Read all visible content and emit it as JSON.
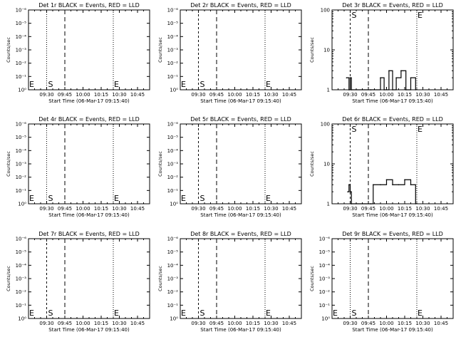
{
  "colors": {
    "events": "#000000",
    "lld": "#ff0000",
    "background": "#ffffff"
  },
  "layout_common": {
    "x_tick_labels": [
      "09:30",
      "09:45",
      "10:00",
      "10:15",
      "10:30",
      "10:45"
    ],
    "xlabel": "Start Time (06-Mar-17 09:15:40)",
    "ylabel": "Counts/sec",
    "marker_s": "S",
    "marker_e": "E"
  },
  "chart_data": [
    {
      "type": "line",
      "scale": "log",
      "title": "Det 1r BLACK = Events, RED = LLD",
      "ytick_labels": [
        "10⁰",
        "10⁻¹",
        "10⁻²",
        "10⁻³",
        "10⁻⁴",
        "10⁻⁵",
        "10⁻⁶"
      ],
      "ylim": [
        1,
        1e-06
      ],
      "xlim": [
        "09:15",
        "10:55"
      ],
      "lines": {
        "dotted": [
          "09:15",
          "09:30",
          "10:25",
          "10:55"
        ],
        "dashed": [
          "09:45"
        ],
        "short_dash": []
      },
      "series": []
    },
    {
      "type": "line",
      "scale": "log",
      "title": "Det 2r BLACK = Events, RED = LLD",
      "ytick_labels": [
        "10⁰",
        "10⁻¹",
        "10⁻²",
        "10⁻³",
        "10⁻⁴",
        "10⁻⁵",
        "10⁻⁶"
      ],
      "ylim": [
        1,
        1e-06
      ],
      "xlim": [
        "09:15",
        "10:55"
      ],
      "lines": {
        "dotted": [
          "09:15",
          "10:25",
          "10:55"
        ],
        "dashed": [
          "09:45"
        ],
        "short_dash": [
          "09:30"
        ]
      },
      "series": []
    },
    {
      "type": "line",
      "scale": "log",
      "title": "Det 3r BLACK = Events, RED = LLD",
      "ytick_labels": [
        "1",
        "10",
        "100"
      ],
      "ylim": [
        1,
        100
      ],
      "xlim": [
        "09:15",
        "10:55"
      ],
      "lines": {
        "dotted": [
          "09:15",
          "10:25",
          "10:55"
        ],
        "dashed": [
          "09:45"
        ],
        "short_dash": [
          "09:30"
        ]
      },
      "series": [
        {
          "type": "step",
          "x": [
            "09:27",
            "09:29",
            "09:30",
            "09:31",
            "09:47",
            "09:55",
            "09:58",
            "10:02",
            "10:05",
            "10:08",
            "10:12",
            "10:16",
            "10:20",
            "10:24"
          ],
          "values": [
            2,
            1,
            2,
            1,
            1,
            2,
            1,
            3,
            1,
            2,
            3,
            1,
            2,
            1
          ]
        }
      ]
    },
    {
      "type": "line",
      "scale": "log",
      "title": "Det 4r BLACK = Events, RED = LLD",
      "ytick_labels": [
        "10⁰",
        "10⁻¹",
        "10⁻²",
        "10⁻³",
        "10⁻⁴",
        "10⁻⁵",
        "10⁻⁶"
      ],
      "ylim": [
        1,
        1e-06
      ],
      "xlim": [
        "09:15",
        "10:55"
      ],
      "lines": {
        "dotted": [
          "09:15",
          "09:30",
          "10:25",
          "10:55"
        ],
        "dashed": [
          "09:45"
        ],
        "short_dash": []
      },
      "series": []
    },
    {
      "type": "line",
      "scale": "log",
      "title": "Det 5r BLACK = Events, RED = LLD",
      "ytick_labels": [
        "10⁰",
        "10⁻¹",
        "10⁻²",
        "10⁻³",
        "10⁻⁴",
        "10⁻⁵",
        "10⁻⁶"
      ],
      "ylim": [
        1,
        1e-06
      ],
      "xlim": [
        "09:15",
        "10:55"
      ],
      "lines": {
        "dotted": [
          "09:15",
          "10:25",
          "10:55"
        ],
        "dashed": [
          "09:45"
        ],
        "short_dash": [
          "09:30"
        ]
      },
      "series": []
    },
    {
      "type": "line",
      "scale": "log",
      "title": "Det 6r BLACK = Events, RED = LLD",
      "ytick_labels": [
        "1",
        "10",
        "100"
      ],
      "ylim": [
        1,
        100
      ],
      "xlim": [
        "09:15",
        "10:55"
      ],
      "lines": {
        "dotted": [
          "09:15",
          "10:25",
          "10:55"
        ],
        "dashed": [
          "09:45"
        ],
        "short_dash": [
          "09:30"
        ]
      },
      "series": [
        {
          "type": "step",
          "x": [
            "09:28",
            "09:29",
            "09:30",
            "09:31",
            "09:47",
            "09:49",
            "09:55",
            "10:00",
            "10:05",
            "10:10",
            "10:15",
            "10:20",
            "10:24"
          ],
          "values": [
            2,
            3,
            2,
            1,
            1,
            3,
            3,
            4,
            3,
            3,
            4,
            3,
            1
          ]
        }
      ]
    },
    {
      "type": "line",
      "scale": "log",
      "title": "Det 7r BLACK = Events, RED = LLD",
      "ytick_labels": [
        "10⁰",
        "10⁻¹",
        "10⁻²",
        "10⁻³",
        "10⁻⁴",
        "10⁻⁵",
        "10⁻⁶"
      ],
      "ylim": [
        1,
        1e-06
      ],
      "xlim": [
        "09:15",
        "10:55"
      ],
      "lines": {
        "dotted": [
          "09:15",
          "10:25",
          "10:55"
        ],
        "dashed": [
          "09:45"
        ],
        "short_dash": [
          "09:30"
        ]
      },
      "series": []
    },
    {
      "type": "line",
      "scale": "log",
      "title": "Det 8r BLACK = Events, RED = LLD",
      "ytick_labels": [
        "10⁰",
        "10⁻¹",
        "10⁻²",
        "10⁻³",
        "10⁻⁴",
        "10⁻⁵",
        "10⁻⁶"
      ],
      "ylim": [
        1,
        1e-06
      ],
      "xlim": [
        "09:15",
        "10:55"
      ],
      "lines": {
        "dotted": [
          "09:15",
          "10:25",
          "10:55"
        ],
        "dashed": [
          "09:45"
        ],
        "short_dash": [
          "09:30"
        ]
      },
      "series": []
    },
    {
      "type": "line",
      "scale": "log",
      "title": "Det 9r BLACK = Events, RED = LLD",
      "ytick_labels": [
        "10⁰",
        "10⁻¹",
        "10⁻²",
        "10⁻³",
        "10⁻⁴",
        "10⁻⁵",
        "10⁻⁶"
      ],
      "ylim": [
        1,
        1e-06
      ],
      "xlim": [
        "09:15",
        "10:55"
      ],
      "lines": {
        "dotted": [
          "09:15",
          "09:30",
          "10:25",
          "10:55"
        ],
        "dashed": [
          "09:45"
        ],
        "short_dash": []
      },
      "series": []
    }
  ]
}
